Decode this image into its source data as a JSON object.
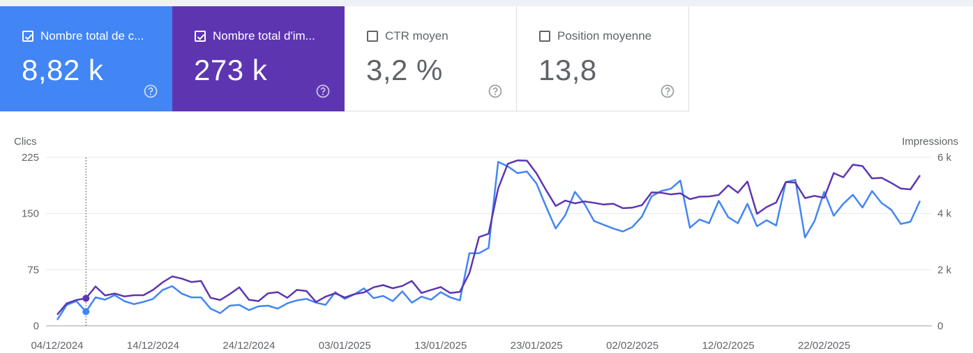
{
  "cards": [
    {
      "label": "Nombre total de c...",
      "value": "8,82 k",
      "selected": true,
      "color": "#4285f4"
    },
    {
      "label": "Nombre total d'im...",
      "value": "273 k",
      "selected": true,
      "color": "#5e35b1"
    },
    {
      "label": "CTR moyen",
      "value": "3,2 %",
      "selected": false
    },
    {
      "label": "Position moyenne",
      "value": "13,8",
      "selected": false
    }
  ],
  "chart_data": {
    "type": "line",
    "xlabel": "",
    "ylabel_left": "Clics",
    "ylabel_right": "Impressions",
    "left_ticks": [
      "225",
      "150",
      "75",
      "0"
    ],
    "right_ticks": [
      "6 k",
      "4 k",
      "2 k",
      "0"
    ],
    "ylim_left": [
      0,
      225
    ],
    "ylim_right": [
      0,
      6000
    ],
    "x_tick_labels": [
      "04/12/2024",
      "14/12/2024",
      "24/12/2024",
      "03/01/2025",
      "13/01/2025",
      "23/01/2025",
      "02/02/2025",
      "12/02/2025",
      "22/02/2025"
    ],
    "grid": true,
    "hover_index": 3,
    "series": [
      {
        "name": "Nombre total de c...",
        "axis": "left",
        "color": "#4285f4",
        "values": [
          8,
          28,
          33,
          19,
          38,
          35,
          41,
          33,
          29,
          32,
          36,
          48,
          53,
          43,
          38,
          38,
          23,
          17,
          27,
          28,
          21,
          26,
          27,
          23,
          30,
          34,
          36,
          31,
          28,
          45,
          36,
          42,
          50,
          37,
          40,
          33,
          46,
          31,
          39,
          35,
          45,
          38,
          34,
          97,
          97,
          104,
          219,
          213,
          204,
          206,
          190,
          159,
          130,
          148,
          179,
          163,
          140,
          135,
          130,
          126,
          132,
          146,
          173,
          180,
          183,
          194,
          131,
          142,
          137,
          167,
          145,
          137,
          163,
          133,
          141,
          134,
          192,
          195,
          118,
          140,
          179,
          147,
          163,
          175,
          158,
          180,
          164,
          155,
          136,
          139,
          167
        ]
      },
      {
        "name": "Nombre total d'im...",
        "axis": "right",
        "color": "#5e35b1",
        "values": [
          400,
          800,
          920,
          980,
          1400,
          1080,
          1150,
          1050,
          1090,
          1090,
          1280,
          1550,
          1760,
          1680,
          1560,
          1600,
          1000,
          920,
          1130,
          1370,
          930,
          880,
          1160,
          1200,
          1000,
          1280,
          1240,
          850,
          1040,
          1160,
          1010,
          1130,
          1190,
          1370,
          1450,
          1340,
          1420,
          1600,
          1170,
          1280,
          1380,
          1170,
          1210,
          1880,
          3160,
          3280,
          4890,
          5770,
          5890,
          5880,
          5430,
          4830,
          4270,
          4460,
          4360,
          4430,
          4380,
          4320,
          4350,
          4190,
          4210,
          4300,
          4750,
          4740,
          4680,
          4720,
          4510,
          4600,
          4610,
          4660,
          5000,
          4740,
          5140,
          3990,
          4230,
          4390,
          5120,
          5100,
          4550,
          4630,
          4560,
          5440,
          5290,
          5740,
          5690,
          5250,
          5270,
          5090,
          4890,
          4860,
          5360
        ]
      }
    ]
  }
}
